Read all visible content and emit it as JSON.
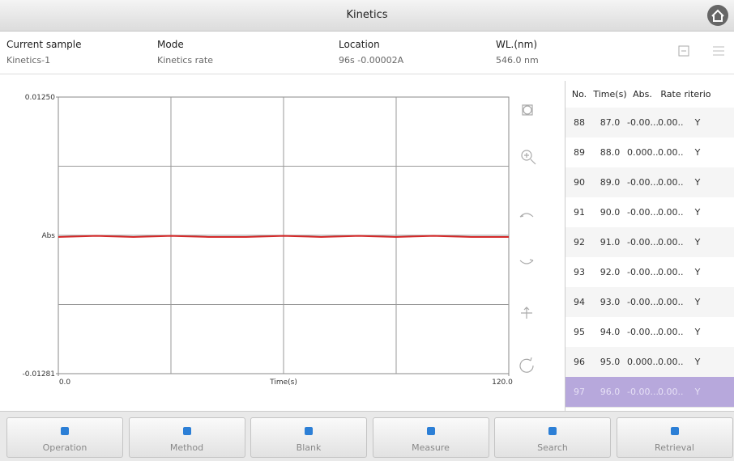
{
  "header": {
    "title": "Kinetics"
  },
  "info": [
    {
      "label": "Current sample",
      "value": "Kinetics-1"
    },
    {
      "label": "Mode",
      "value": "Kinetics rate"
    },
    {
      "label": "Location",
      "value": "96s -0.00002A"
    },
    {
      "label": "WL.(nm)",
      "value": "546.0 nm"
    }
  ],
  "plot": {
    "ylim": [
      -0.01281,
      0.0125
    ],
    "yticks": [
      {
        "value": -0.01281,
        "label": "-0.01281"
      },
      {
        "value": 0.0125,
        "label": "0.01250"
      }
    ],
    "ylabel": "Abs",
    "xlim": [
      0,
      120
    ],
    "xticks": [
      {
        "value": 0,
        "label": "0.0"
      },
      {
        "value": 120,
        "label": "120.0"
      }
    ],
    "xlabel": "Time(s)",
    "line": {
      "color": "#d42a2a",
      "x": [
        0,
        10,
        20,
        30,
        40,
        50,
        60,
        70,
        80,
        90,
        100,
        110,
        120
      ],
      "values": [
        -0.0003,
        -0.0002,
        -0.0003,
        -0.0002,
        -0.0003,
        -0.0003,
        -0.0002,
        -0.0003,
        -0.0002,
        -0.0003,
        -0.0002,
        -0.0003,
        -0.0003
      ]
    }
  },
  "table": {
    "columns": [
      "No.",
      "Time(s)",
      "Abs.",
      "Rate",
      "riterio"
    ],
    "rows": [
      [
        "88",
        "87.0",
        "-0.00...",
        "0.00...",
        "Y"
      ],
      [
        "89",
        "88.0",
        "0.000...",
        "0.00...",
        "Y"
      ],
      [
        "90",
        "89.0",
        "-0.00...",
        "0.00...",
        "Y"
      ],
      [
        "91",
        "90.0",
        "-0.00...",
        "0.00...",
        "Y"
      ],
      [
        "92",
        "91.0",
        "-0.00...",
        "0.00...",
        "Y"
      ],
      [
        "93",
        "92.0",
        "-0.00...",
        "0.00...",
        "Y"
      ],
      [
        "94",
        "93.0",
        "-0.00...",
        "0.00...",
        "Y"
      ],
      [
        "95",
        "94.0",
        "-0.00...",
        "0.00...",
        "Y"
      ],
      [
        "96",
        "95.0",
        "0.000...",
        "0.00...",
        "Y"
      ],
      [
        "97",
        "96.0",
        "-0.00...",
        "0.00...",
        "Y"
      ]
    ],
    "selected_row": 9
  },
  "buttons": [
    "Operation",
    "Method",
    "Blank",
    "Measure",
    "Search",
    "Retrieval"
  ]
}
